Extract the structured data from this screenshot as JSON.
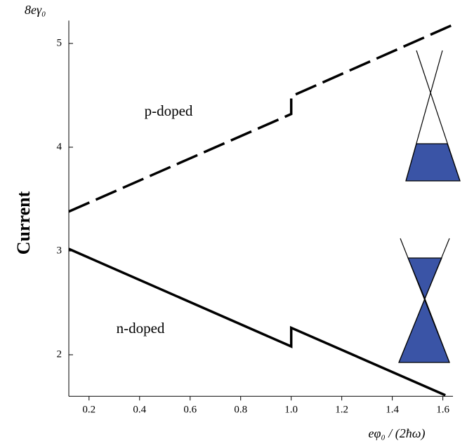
{
  "chart_data": {
    "type": "line",
    "y_label": "Current",
    "y_unit": "8eγ₀",
    "x_label": "eφ₀ / (2ħω)",
    "annotations": [
      "p-doped",
      "n-doped"
    ],
    "series": [
      {
        "name": "p-doped",
        "color": "#000000",
        "dashed": true,
        "x": [
          0.12,
          1.0,
          1.0,
          1.64
        ],
        "values": [
          3.38,
          4.32,
          4.49,
          5.18
        ]
      },
      {
        "name": "n-doped",
        "color": "#000000",
        "dashed": false,
        "x": [
          0.12,
          1.0,
          1.0,
          1.61
        ],
        "values": [
          3.02,
          2.08,
          2.26,
          1.61
        ]
      }
    ],
    "xlim": [
      0.12,
      1.64
    ],
    "ylim": [
      1.6,
      5.22
    ],
    "xticks": [
      0.2,
      0.4,
      0.6,
      0.8,
      {
        "value": 1,
        "label": "1.0"
      },
      1.2,
      1.4,
      1.6
    ],
    "yticks": [
      2,
      3,
      4,
      5
    ],
    "grid": false
  }
}
